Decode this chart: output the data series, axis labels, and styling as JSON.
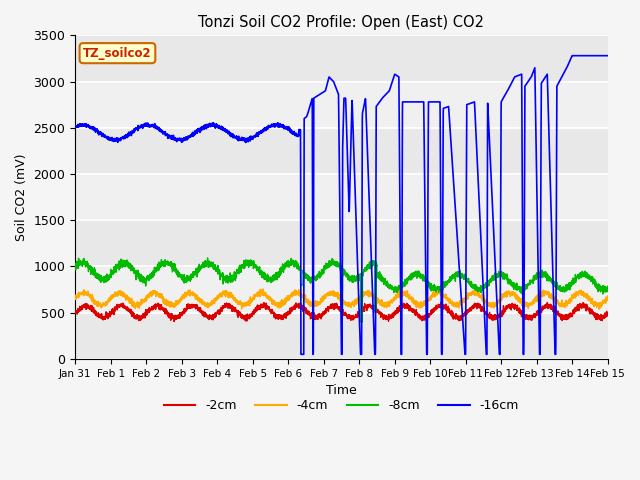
{
  "title": "Tonzi Soil CO2 Profile: Open (East) CO2",
  "xlabel": "Time",
  "ylabel": "Soil CO2 (mV)",
  "ylim": [
    0,
    3500
  ],
  "xlim_days": [
    0,
    15
  ],
  "background_color": "#f5f5f5",
  "plot_bg_color": "#f0f0f0",
  "label_box_text": "TZ_soilco2",
  "label_box_facecolor": "#ffffcc",
  "label_box_edgecolor": "#cc6600",
  "series": {
    "neg2cm": {
      "color": "#dd0000",
      "label": "-2cm"
    },
    "neg4cm": {
      "color": "#ffaa00",
      "label": "-4cm"
    },
    "neg8cm": {
      "color": "#00bb00",
      "label": "-8cm"
    },
    "neg16cm": {
      "color": "#0000ff",
      "label": "-16cm"
    }
  },
  "xtick_labels": [
    "Jan 31",
    "Feb 1",
    "Feb 2",
    "Feb 3",
    "Feb 4",
    "Feb 5",
    "Feb 6",
    "Feb 7",
    "Feb 8",
    "Feb 9",
    "Feb 10",
    "Feb 11",
    "Feb 12",
    "Feb 13",
    "Feb 14",
    "Feb 15"
  ],
  "xtick_positions": [
    0,
    1,
    2,
    3,
    4,
    5,
    6,
    7,
    8,
    9,
    10,
    11,
    12,
    13,
    14,
    15
  ],
  "band_edges": [
    0,
    500,
    1000,
    1500,
    2000,
    2500,
    3000,
    3500
  ],
  "band_colors": [
    "#e8e8e8",
    "#f0f0f0",
    "#e8e8e8",
    "#f0f0f0",
    "#e8e8e8",
    "#f0f0f0",
    "#e8e8e8"
  ]
}
